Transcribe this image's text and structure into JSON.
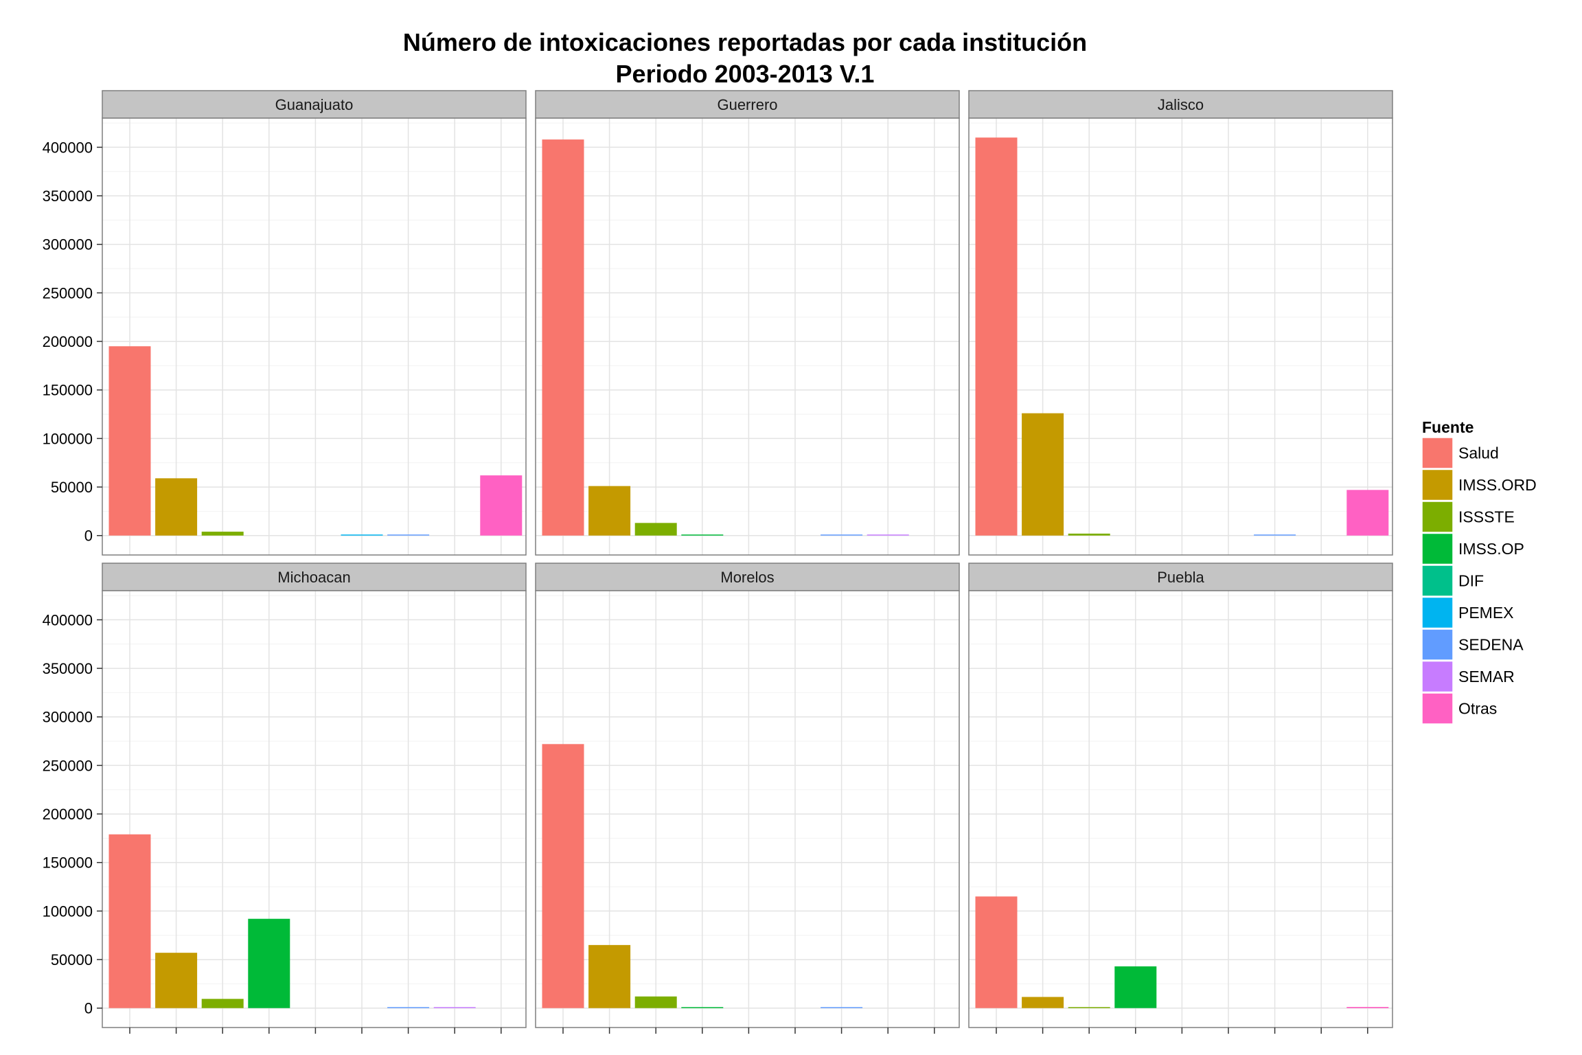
{
  "chart_data": {
    "type": "bar",
    "title": "Número de intoxicaciones reportadas por cada institución",
    "subtitle": "Periodo 2003-2013 V.1",
    "xlabel": "",
    "ylabel": "",
    "ylim": [
      -20000,
      430000
    ],
    "yticks": [
      0,
      50000,
      100000,
      150000,
      200000,
      250000,
      300000,
      350000,
      400000
    ],
    "legend": {
      "title": "Fuente",
      "position": "right",
      "items": [
        {
          "name": "Salud",
          "color": "#F8766D"
        },
        {
          "name": "IMSS.ORD",
          "color": "#C49A00"
        },
        {
          "name": "ISSSTE",
          "color": "#7CAE00"
        },
        {
          "name": "IMSS.OP",
          "color": "#00BA38"
        },
        {
          "name": "DIF",
          "color": "#00C08B"
        },
        {
          "name": "PEMEX",
          "color": "#00B4F0"
        },
        {
          "name": "SEDENA",
          "color": "#619CFF"
        },
        {
          "name": "SEMAR",
          "color": "#C77CFF"
        },
        {
          "name": "Otras",
          "color": "#FF61C3"
        }
      ]
    },
    "categories": [
      "Salud",
      "IMSS.ORD",
      "ISSSTE",
      "IMSS.OP",
      "DIF",
      "PEMEX",
      "SEDENA",
      "SEMAR",
      "Otras"
    ],
    "panels": [
      {
        "name": "Guanajuato",
        "values": [
          195000,
          59000,
          4000,
          0,
          0,
          300,
          800,
          0,
          62000
        ]
      },
      {
        "name": "Guerrero",
        "values": [
          408000,
          51000,
          13000,
          800,
          0,
          0,
          800,
          600,
          0
        ]
      },
      {
        "name": "Jalisco",
        "values": [
          410000,
          126000,
          2000,
          0,
          0,
          0,
          800,
          0,
          47000
        ]
      },
      {
        "name": "Michoacan",
        "values": [
          179000,
          57000,
          9500,
          92000,
          0,
          0,
          800,
          400,
          0
        ]
      },
      {
        "name": "Morelos",
        "values": [
          272000,
          65000,
          12000,
          400,
          0,
          0,
          800,
          0,
          0
        ]
      },
      {
        "name": "Puebla",
        "values": [
          115000,
          11500,
          1000,
          43000,
          0,
          0,
          0,
          0,
          1200
        ]
      }
    ]
  }
}
